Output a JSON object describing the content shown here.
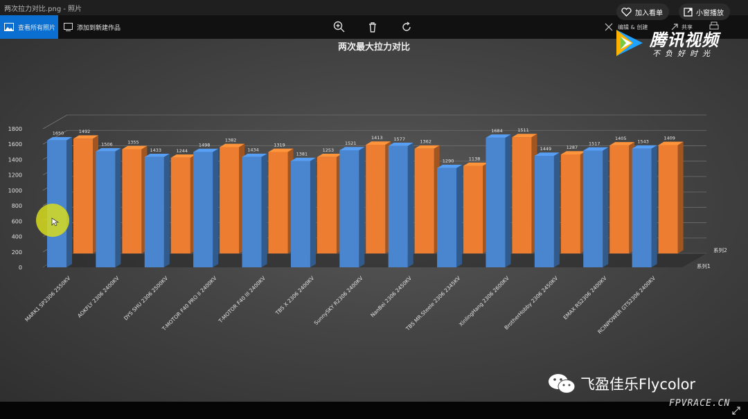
{
  "window": {
    "title": "两次拉力对比.png - 照片"
  },
  "toolbar": {
    "view_all": "查看所有照片",
    "add_to": "添加到新建作品",
    "edit_create": "编辑 & 创建",
    "share": "共享"
  },
  "overlay": {
    "add_list": "加入看单",
    "mini_play": "小窗播放",
    "brand": "腾讯视频",
    "slogan": "不负好时光"
  },
  "watermark": {
    "text": "飞盈佳乐Flycolor",
    "site": "FPVRACE.CN"
  },
  "colors": {
    "series1": "#4a86d0",
    "series2": "#ed7d31"
  },
  "chart_data": {
    "type": "bar",
    "title": "两次最大拉力对比",
    "categories": [
      "MARK1 SP2306 2550KV",
      "AOKFLY 2306 2400KV",
      "DYS SHU 2306 2500KV",
      "T-MOTOR F40 PRO II 2400KV",
      "T-MOTOR F40 III 2400KV",
      "TBS X 2306 2400KV",
      "SunnySKY R2306 2400KV",
      "NanBei 2306 2450KV",
      "TBS MR.Steele 2306 2345KV",
      "XinlingHang 2306 2600KV",
      "BrotherHobby 2306 2450KV",
      "EMAX RS2306 2400KV",
      "RCINPOWER GTS2306 2400KV"
    ],
    "series": [
      {
        "name": "系列1",
        "values": [
          1650,
          1506,
          1433,
          1498,
          1434,
          1381,
          1521,
          1577,
          1290,
          1684,
          1449,
          1517,
          1543
        ]
      },
      {
        "name": "系列2",
        "values": [
          1492,
          1355,
          1244,
          1382,
          1319,
          1253,
          1413,
          1362,
          1138,
          1511,
          1287,
          1405,
          1409
        ]
      }
    ],
    "yticks": [
      0,
      200,
      400,
      600,
      800,
      1000,
      1200,
      1400,
      1600,
      1800
    ],
    "ylim": [
      0,
      1800
    ],
    "grid": true,
    "legend": "right-depth-axis"
  }
}
